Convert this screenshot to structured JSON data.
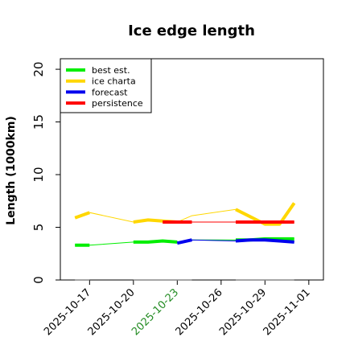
{
  "chart_data": {
    "type": "line",
    "title": "Ice edge length",
    "xlabel": "",
    "ylabel": "Length (1000km)",
    "ylim": [
      0,
      21
    ],
    "xlim": [
      "2025-10-15",
      "2025-11-02"
    ],
    "yticks": [
      0,
      5,
      10,
      15,
      20
    ],
    "xticks": [
      {
        "date": "2025-10-17",
        "label": "2025-10-17",
        "color": "#000000"
      },
      {
        "date": "2025-10-20",
        "label": "2025-10-20",
        "color": "#000000"
      },
      {
        "date": "2025-10-23",
        "label": "2025-10-23",
        "color": "#228b22"
      },
      {
        "date": "2025-10-26",
        "label": "2025-10-26",
        "color": "#000000"
      },
      {
        "date": "2025-10-29",
        "label": "2025-10-29",
        "color": "#000000"
      },
      {
        "date": "2025-11-01",
        "label": "2025-11-01",
        "color": "#000000"
      }
    ],
    "legend_position": "top-left",
    "series": [
      {
        "name": "best est.",
        "color": "#00ee00",
        "thin_line": [
          [
            "2025-10-16",
            3.3
          ],
          [
            "2025-10-17",
            3.3
          ],
          [
            "2025-10-20",
            3.6
          ],
          [
            "2025-10-21",
            3.6
          ],
          [
            "2025-10-22",
            3.7
          ],
          [
            "2025-10-23",
            3.6
          ],
          [
            "2025-10-24",
            3.8
          ],
          [
            "2025-10-27",
            3.8
          ],
          [
            "2025-10-28",
            3.8
          ],
          [
            "2025-10-29",
            3.9
          ],
          [
            "2025-10-30",
            3.9
          ],
          [
            "2025-10-31",
            3.9
          ]
        ],
        "thick_segments": [
          [
            [
              "2025-10-16",
              3.3
            ],
            [
              "2025-10-17",
              3.3
            ]
          ],
          [
            [
              "2025-10-20",
              3.6
            ],
            [
              "2025-10-21",
              3.6
            ],
            [
              "2025-10-22",
              3.7
            ],
            [
              "2025-10-23",
              3.6
            ]
          ],
          [
            [
              "2025-10-27",
              3.8
            ],
            [
              "2025-10-28",
              3.8
            ],
            [
              "2025-10-29",
              3.9
            ],
            [
              "2025-10-30",
              3.9
            ],
            [
              "2025-10-31",
              3.9
            ]
          ]
        ]
      },
      {
        "name": "ice charta",
        "color": "#ffd700",
        "thin_line": [
          [
            "2025-10-16",
            5.9
          ],
          [
            "2025-10-17",
            6.4
          ],
          [
            "2025-10-20",
            5.5
          ],
          [
            "2025-10-21",
            5.7
          ],
          [
            "2025-10-22",
            5.6
          ],
          [
            "2025-10-23",
            5.5
          ],
          [
            "2025-10-24",
            6.1
          ],
          [
            "2025-10-27",
            6.7
          ],
          [
            "2025-10-28",
            6.0
          ],
          [
            "2025-10-29",
            5.3
          ],
          [
            "2025-10-30",
            5.3
          ],
          [
            "2025-10-31",
            7.3
          ]
        ],
        "thick_segments": [
          [
            [
              "2025-10-16",
              5.9
            ],
            [
              "2025-10-17",
              6.4
            ]
          ],
          [
            [
              "2025-10-20",
              5.5
            ],
            [
              "2025-10-21",
              5.7
            ],
            [
              "2025-10-22",
              5.6
            ],
            [
              "2025-10-23",
              5.5
            ]
          ],
          [
            [
              "2025-10-27",
              6.7
            ],
            [
              "2025-10-28",
              6.0
            ],
            [
              "2025-10-29",
              5.3
            ],
            [
              "2025-10-30",
              5.3
            ],
            [
              "2025-10-31",
              7.3
            ]
          ]
        ]
      },
      {
        "name": "forecast",
        "color": "#0000ee",
        "thin_line": [
          [
            "2025-10-23",
            3.5
          ],
          [
            "2025-10-24",
            3.8
          ],
          [
            "2025-10-27",
            3.7
          ],
          [
            "2025-10-28",
            3.8
          ],
          [
            "2025-10-29",
            3.8
          ],
          [
            "2025-10-30",
            3.7
          ],
          [
            "2025-10-31",
            3.6
          ]
        ],
        "thick_segments": [
          [
            [
              "2025-10-23",
              3.5
            ],
            [
              "2025-10-24",
              3.8
            ]
          ],
          [
            [
              "2025-10-27",
              3.7
            ],
            [
              "2025-10-28",
              3.8
            ],
            [
              "2025-10-29",
              3.8
            ],
            [
              "2025-10-30",
              3.7
            ],
            [
              "2025-10-31",
              3.6
            ]
          ]
        ]
      },
      {
        "name": "persistence",
        "color": "#ff0000",
        "thin_line": [
          [
            "2025-10-22",
            5.5
          ],
          [
            "2025-10-24",
            5.5
          ],
          [
            "2025-10-27",
            5.5
          ],
          [
            "2025-10-31",
            5.5
          ]
        ],
        "thick_segments": [
          [
            [
              "2025-10-22",
              5.5
            ],
            [
              "2025-10-24",
              5.5
            ]
          ],
          [
            [
              "2025-10-27",
              5.5
            ],
            [
              "2025-10-31",
              5.5
            ]
          ]
        ]
      }
    ],
    "baseline_marks": {
      "color": "#888888",
      "value": 0,
      "segments": [
        [
          "2025-10-16",
          "2025-10-17"
        ],
        [
          "2025-10-20",
          "2025-10-24"
        ],
        [
          "2025-10-27",
          "2025-10-31"
        ]
      ]
    }
  }
}
